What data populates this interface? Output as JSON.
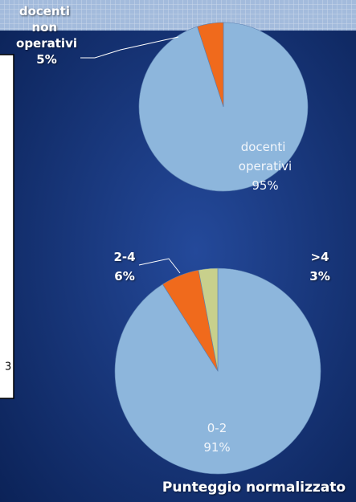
{
  "chart_data": [
    {
      "type": "pie",
      "categories": [
        "docenti operativi",
        "docenti non operativi"
      ],
      "values": [
        95,
        5
      ],
      "value_labels": [
        "95%",
        "5%"
      ],
      "colors": [
        "#8db6dc",
        "#f06a1c"
      ]
    },
    {
      "type": "pie",
      "title": "Punteggio normalizzato",
      "categories": [
        "0-2",
        "2-4",
        ">4"
      ],
      "values": [
        91,
        6,
        3
      ],
      "value_labels": [
        "91%",
        "6%",
        "3%"
      ],
      "colors": [
        "#8db6dc",
        "#f06a1c",
        "#c8d08c"
      ]
    }
  ],
  "side_box": {
    "text": "3"
  }
}
